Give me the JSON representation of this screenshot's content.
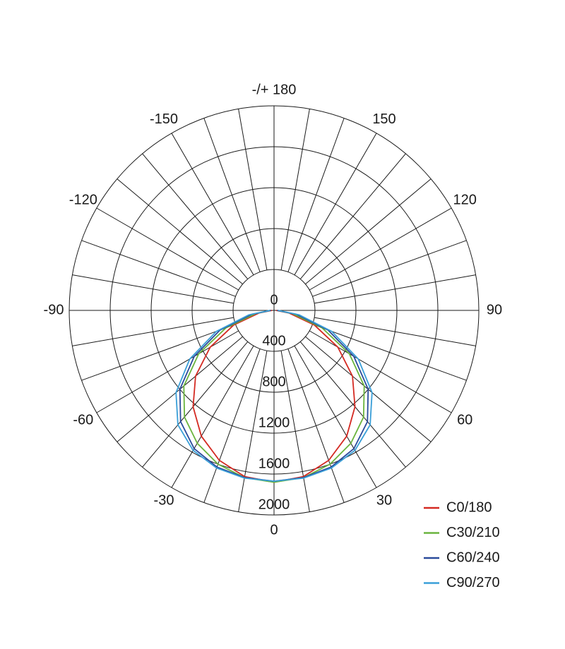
{
  "chart_data": {
    "type": "polar",
    "theta": [
      -90,
      -80,
      -70,
      -60,
      -50,
      -40,
      -30,
      -20,
      -10,
      0,
      10,
      20,
      30,
      40,
      50,
      60,
      70,
      80,
      90
    ],
    "thetaticks": [
      {
        "value": 180,
        "label": "-/+ 180"
      },
      -150,
      -120,
      -90,
      -60,
      -30,
      0,
      30,
      60,
      90,
      120,
      150
    ],
    "rlim": [
      0,
      2000
    ],
    "rticks": [
      0,
      400,
      800,
      1200,
      1600,
      2000
    ],
    "legend": "bottom-right",
    "series": [
      {
        "name": "C0/180",
        "color": "#d42a22",
        "values": [
          20,
          150,
          420,
          720,
          1000,
          1230,
          1420,
          1560,
          1650,
          1680,
          1650,
          1560,
          1420,
          1230,
          1000,
          720,
          420,
          150,
          20
        ]
      },
      {
        "name": "C30/210",
        "color": "#6ab43e",
        "values": [
          30,
          180,
          500,
          850,
          1150,
          1360,
          1500,
          1600,
          1660,
          1680,
          1660,
          1600,
          1500,
          1360,
          1150,
          850,
          500,
          180,
          30
        ]
      },
      {
        "name": "C60/240",
        "color": "#2a4b9b",
        "values": [
          30,
          220,
          560,
          900,
          1200,
          1420,
          1560,
          1630,
          1660,
          1670,
          1660,
          1630,
          1560,
          1420,
          1200,
          900,
          560,
          220,
          30
        ]
      },
      {
        "name": "C90/270",
        "color": "#3a9fd8",
        "values": [
          40,
          250,
          600,
          950,
          1250,
          1460,
          1580,
          1640,
          1665,
          1670,
          1665,
          1640,
          1580,
          1460,
          1250,
          950,
          600,
          250,
          40
        ]
      }
    ]
  }
}
